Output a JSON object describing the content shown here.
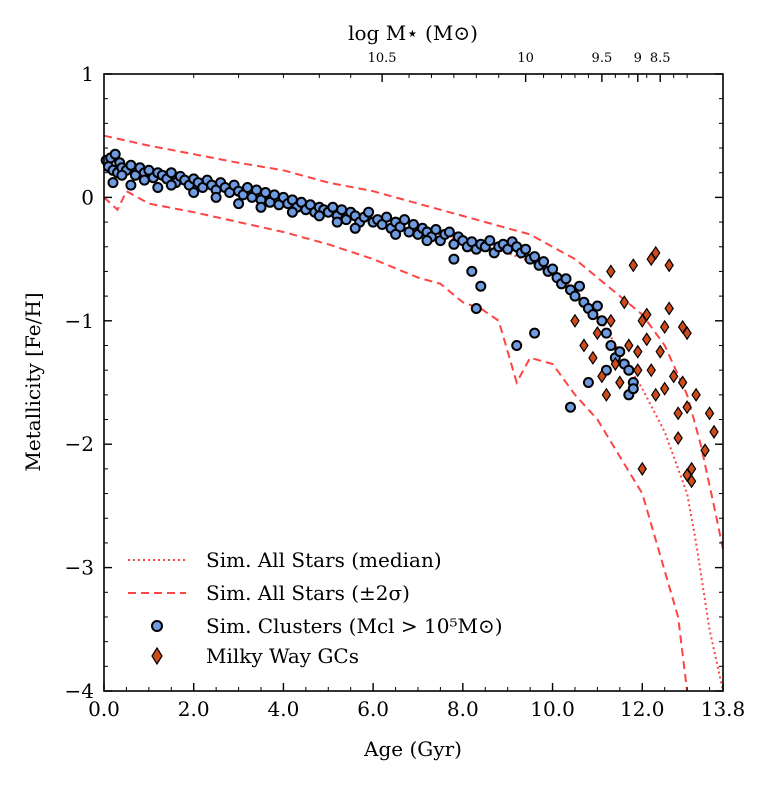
{
  "chart_data": {
    "type": "scatter",
    "title": "",
    "xlabel": "Age (Gyr)",
    "ylabel": "Metallicity [Fe/H]",
    "top_xlabel": "log M⋆ (M⊙)",
    "xlim": [
      0,
      13.8
    ],
    "ylim": [
      -4,
      1
    ],
    "x_ticks": [
      {
        "value": 0,
        "label": "0.0"
      },
      {
        "value": 2,
        "label": "2.0"
      },
      {
        "value": 4,
        "label": "4.0"
      },
      {
        "value": 6,
        "label": "6.0"
      },
      {
        "value": 8,
        "label": "8.0"
      },
      {
        "value": 10,
        "label": "10.0"
      },
      {
        "value": 12,
        "label": "12.0"
      },
      {
        "value": 13.8,
        "label": "13.8"
      }
    ],
    "y_ticks": [
      {
        "value": 1,
        "label": "1"
      },
      {
        "value": 0,
        "label": "0"
      },
      {
        "value": -1,
        "label": "−1"
      },
      {
        "value": -2,
        "label": "−2"
      },
      {
        "value": -3,
        "label": "−3"
      },
      {
        "value": -4,
        "label": "−4"
      }
    ],
    "top_ticks": [
      {
        "age": 6.2,
        "label": "10.5"
      },
      {
        "age": 9.4,
        "label": "10"
      },
      {
        "age": 11.1,
        "label": "9.5"
      },
      {
        "age": 11.9,
        "label": "9"
      },
      {
        "age": 12.4,
        "label": "8.5"
      }
    ],
    "legend_position": "lower-left",
    "series": [
      {
        "name": "Sim. All Stars (median)",
        "legend_label": "Sim. All Stars (median)",
        "style": "dotted",
        "color": "#ff4444",
        "x": [
          0,
          1,
          2,
          3,
          4,
          5,
          6,
          7,
          8,
          8.5,
          9,
          9.5,
          10,
          10.5,
          11,
          11.5,
          12,
          12.5,
          13,
          13.2,
          13.5,
          13.8
        ],
        "y": [
          0.22,
          0.18,
          0.12,
          0.06,
          0.0,
          -0.08,
          -0.15,
          -0.25,
          -0.35,
          -0.4,
          -0.45,
          -0.52,
          -0.62,
          -0.75,
          -0.95,
          -1.25,
          -1.55,
          -1.9,
          -2.4,
          -2.8,
          -3.5,
          -4.0
        ]
      },
      {
        "name": "Sim. All Stars (+2sigma)",
        "legend_label": "Sim. All Stars (±2σ)",
        "style": "dashed",
        "color": "#ff4444",
        "x": [
          0,
          1,
          2,
          3,
          4,
          5,
          6,
          7,
          8,
          8.5,
          9,
          9.5,
          10,
          10.5,
          11,
          11.5,
          12,
          12.5,
          13,
          13.3,
          13.6,
          13.8
        ],
        "y": [
          0.5,
          0.42,
          0.35,
          0.28,
          0.22,
          0.12,
          0.05,
          -0.05,
          -0.15,
          -0.2,
          -0.25,
          -0.3,
          -0.4,
          -0.5,
          -0.65,
          -0.8,
          -0.95,
          -1.2,
          -1.6,
          -2.0,
          -2.5,
          -2.85
        ]
      },
      {
        "name": "Sim. All Stars (-2sigma)",
        "style": "dashed",
        "color": "#ff4444",
        "x": [
          0,
          0.3,
          0.5,
          1,
          2,
          3,
          4,
          5,
          6,
          7,
          7.5,
          8,
          8.4,
          8.8,
          9.2,
          9.5,
          10,
          10.5,
          11,
          11.5,
          12,
          12.4,
          12.8,
          13.0
        ],
        "y": [
          0.0,
          -0.1,
          0.05,
          -0.05,
          -0.12,
          -0.2,
          -0.28,
          -0.38,
          -0.5,
          -0.65,
          -0.7,
          -0.85,
          -0.9,
          -1.0,
          -1.5,
          -1.3,
          -1.35,
          -1.6,
          -1.8,
          -2.1,
          -2.4,
          -2.9,
          -3.4,
          -4.0
        ]
      },
      {
        "name": "Sim. Clusters (M_cl > 10^5 M_sun)",
        "legend_label": "Sim. Clusters (Mcl > 10⁵M⊙)",
        "style": "markers-circle",
        "color": "#6f9be0",
        "x": [
          0.05,
          0.1,
          0.15,
          0.2,
          0.25,
          0.3,
          0.35,
          0.4,
          0.5,
          0.6,
          0.7,
          0.8,
          0.9,
          1.0,
          1.1,
          1.2,
          1.3,
          1.4,
          1.5,
          1.6,
          1.7,
          1.8,
          1.9,
          2.0,
          2.1,
          2.2,
          2.3,
          2.4,
          2.5,
          2.6,
          2.7,
          2.8,
          2.9,
          3.0,
          3.1,
          3.2,
          3.3,
          3.4,
          3.5,
          3.6,
          3.7,
          3.8,
          3.9,
          4.0,
          4.1,
          4.2,
          4.3,
          4.4,
          4.5,
          4.6,
          4.7,
          4.8,
          4.9,
          5.0,
          5.1,
          5.2,
          5.3,
          5.4,
          5.5,
          5.6,
          5.7,
          5.8,
          5.9,
          6.0,
          6.1,
          6.2,
          6.3,
          6.4,
          6.5,
          6.6,
          6.7,
          6.8,
          6.9,
          7.0,
          7.1,
          7.2,
          7.3,
          7.4,
          7.5,
          7.6,
          7.7,
          7.8,
          7.9,
          8.0,
          8.1,
          8.2,
          8.3,
          8.4,
          8.5,
          8.6,
          8.7,
          8.8,
          8.9,
          9.0,
          9.1,
          9.2,
          9.3,
          9.4,
          9.5,
          9.6,
          9.7,
          9.8,
          9.9,
          10.0,
          10.1,
          10.2,
          10.3,
          10.4,
          10.5,
          10.6,
          10.7,
          10.8,
          10.9,
          11.0,
          11.1,
          11.2,
          11.3,
          11.4,
          11.5,
          11.6,
          11.7,
          11.8,
          0.2,
          0.4,
          0.6,
          0.9,
          1.2,
          1.5,
          2.0,
          2.5,
          3.0,
          3.5,
          4.2,
          4.8,
          5.2,
          5.6,
          6.5,
          7.2,
          7.8,
          8.2,
          8.3,
          8.4,
          9.2,
          9.6,
          10.4,
          10.8,
          11.2,
          11.7,
          11.8
        ],
        "y": [
          0.3,
          0.25,
          0.32,
          0.22,
          0.35,
          0.2,
          0.28,
          0.24,
          0.22,
          0.26,
          0.18,
          0.24,
          0.2,
          0.22,
          0.16,
          0.2,
          0.18,
          0.15,
          0.2,
          0.12,
          0.17,
          0.14,
          0.1,
          0.15,
          0.12,
          0.08,
          0.14,
          0.1,
          0.06,
          0.12,
          0.08,
          0.04,
          0.1,
          0.05,
          0.02,
          0.08,
          0.0,
          0.06,
          -0.02,
          0.04,
          -0.04,
          0.02,
          -0.06,
          0.0,
          -0.05,
          -0.02,
          -0.08,
          -0.04,
          -0.1,
          -0.06,
          -0.12,
          -0.08,
          -0.1,
          -0.12,
          -0.08,
          -0.15,
          -0.1,
          -0.18,
          -0.12,
          -0.15,
          -0.2,
          -0.16,
          -0.12,
          -0.2,
          -0.18,
          -0.22,
          -0.16,
          -0.25,
          -0.2,
          -0.24,
          -0.18,
          -0.28,
          -0.22,
          -0.3,
          -0.25,
          -0.28,
          -0.32,
          -0.26,
          -0.35,
          -0.3,
          -0.28,
          -0.38,
          -0.32,
          -0.35,
          -0.4,
          -0.36,
          -0.42,
          -0.38,
          -0.4,
          -0.35,
          -0.45,
          -0.4,
          -0.38,
          -0.42,
          -0.36,
          -0.4,
          -0.45,
          -0.42,
          -0.5,
          -0.48,
          -0.55,
          -0.52,
          -0.6,
          -0.58,
          -0.65,
          -0.7,
          -0.66,
          -0.75,
          -0.8,
          -0.72,
          -0.85,
          -0.9,
          -0.95,
          -0.88,
          -1.0,
          -1.1,
          -1.2,
          -1.3,
          -1.25,
          -1.35,
          -1.4,
          -1.5,
          0.12,
          0.18,
          0.1,
          0.14,
          0.08,
          0.1,
          0.04,
          0.0,
          -0.05,
          -0.08,
          -0.12,
          -0.15,
          -0.2,
          -0.25,
          -0.3,
          -0.35,
          -0.5,
          -0.6,
          -0.9,
          -0.72,
          -1.2,
          -1.1,
          -1.7,
          -1.5,
          -1.4,
          -1.6,
          -1.55
        ]
      },
      {
        "name": "Milky Way GCs",
        "legend_label": "Milky Way GCs",
        "style": "markers-diamond",
        "color": "#d04a1a",
        "x": [
          10.5,
          10.7,
          10.9,
          11.0,
          11.1,
          11.2,
          11.3,
          11.4,
          11.5,
          11.6,
          11.7,
          11.8,
          11.9,
          12.0,
          12.0,
          12.1,
          12.2,
          12.2,
          12.3,
          12.4,
          12.5,
          12.5,
          12.6,
          12.7,
          12.8,
          12.8,
          12.9,
          12.9,
          13.0,
          13.0,
          13.1,
          13.1,
          13.2,
          13.4,
          13.5,
          13.6,
          11.3,
          11.9,
          12.1,
          12.6,
          13.0,
          12.3
        ],
        "y": [
          -1.0,
          -1.2,
          -1.3,
          -1.1,
          -1.45,
          -1.6,
          -0.6,
          -1.35,
          -1.5,
          -0.85,
          -1.2,
          -0.55,
          -1.25,
          -1.0,
          -2.2,
          -0.95,
          -1.4,
          -0.5,
          -1.6,
          -1.25,
          -1.05,
          -1.55,
          -0.9,
          -1.45,
          -1.75,
          -1.95,
          -1.05,
          -1.5,
          -1.7,
          -2.25,
          -2.3,
          -2.2,
          -1.6,
          -2.05,
          -1.75,
          -1.9,
          -1.0,
          -1.4,
          -1.15,
          -0.55,
          -1.1,
          -0.45
        ]
      }
    ]
  }
}
